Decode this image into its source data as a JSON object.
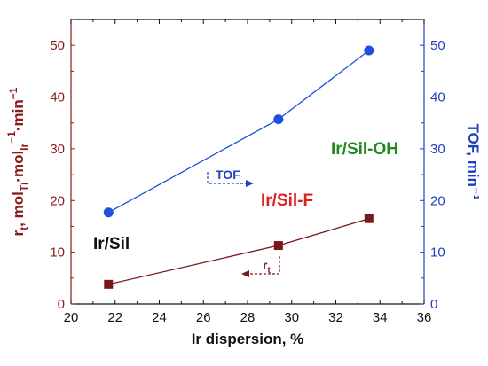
{
  "chart_data": {
    "type": "line",
    "title": "",
    "xlabel": "Ir dispersion, %",
    "ylabel_left_parts": [
      "r",
      "t",
      ", mol",
      "Ti",
      "·mol",
      "Ir",
      "−1",
      "·min",
      "−1"
    ],
    "ylabel_right": "TOF, min⁻¹",
    "xlim": [
      20,
      36
    ],
    "x_ticks": [
      "20",
      "22",
      "24",
      "26",
      "28",
      "30",
      "32",
      "34",
      "36"
    ],
    "ylim_left": [
      0,
      55
    ],
    "y_ticks_left": [
      "0",
      "10",
      "20",
      "30",
      "40",
      "50"
    ],
    "ylim_right": [
      0,
      55
    ],
    "y_ticks_right": [
      "0",
      "10",
      "20",
      "30",
      "40",
      "50"
    ],
    "grid": false,
    "colors": {
      "left_axis": "#8b1a1a",
      "right_axis": "#1f3fbf",
      "rt_series": "#7a1717",
      "tof_series": "#1f4fe0"
    },
    "series": [
      {
        "axis": "left",
        "marker": "square",
        "color": "#7a1717",
        "x": [
          21.7,
          29.4,
          33.5
        ],
        "y": [
          3.8,
          11.3,
          16.5
        ]
      },
      {
        "axis": "right",
        "marker": "circle",
        "color": "#1f4fe0",
        "x": [
          21.7,
          29.4,
          33.5
        ],
        "y": [
          17.7,
          35.7,
          49.0
        ]
      }
    ],
    "annotations": [
      {
        "text": "Ir/Sil",
        "color": "#111111"
      },
      {
        "text": "Ir/Sil-F",
        "color": "#e02020"
      },
      {
        "text": "Ir/Sil-OH",
        "color": "#1f8a1f"
      },
      {
        "text": "TOF",
        "color": "#1f3fbf"
      },
      {
        "text_parts": [
          "r",
          "t"
        ],
        "color": "#7a1717"
      }
    ]
  }
}
